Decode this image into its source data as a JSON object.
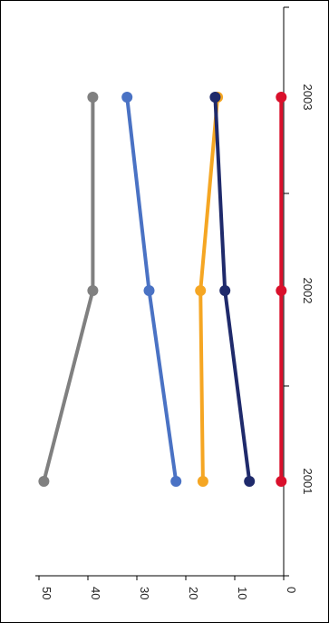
{
  "chart_data": {
    "type": "line",
    "orientation": "rotated-90-clockwise",
    "title": "",
    "xlabel": "",
    "ylabel": "",
    "categories": [
      "2001",
      "2002",
      "2003"
    ],
    "ylim": [
      0,
      50
    ],
    "yticks": [
      "0",
      "10",
      "20",
      "30",
      "40",
      "50"
    ],
    "grid": false,
    "legend": "none",
    "series": [
      {
        "color": "#808080",
        "values": [
          49,
          39,
          39
        ]
      },
      {
        "color": "#4a72c4",
        "values": [
          22,
          27.5,
          32
        ]
      },
      {
        "color": "#f5a623",
        "values": [
          16.5,
          17,
          13.5
        ]
      },
      {
        "color": "#1f2a6b",
        "values": [
          7,
          12,
          14
        ]
      },
      {
        "color": "#d9102b",
        "values": [
          0.5,
          0.5,
          0.5
        ]
      }
    ]
  }
}
